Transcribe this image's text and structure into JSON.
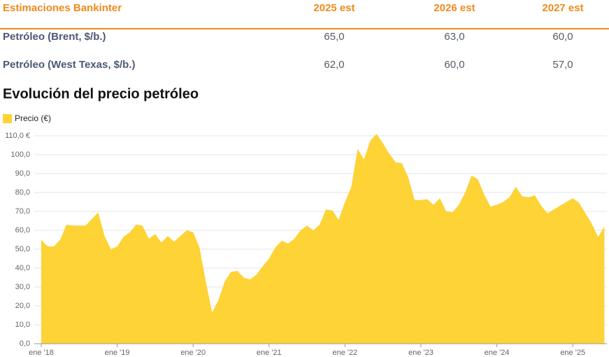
{
  "table": {
    "header": [
      "Estimaciones Bankinter",
      "2025 est",
      "2026 est",
      "2027 est"
    ],
    "rows": [
      [
        "Petróleo (Brent, $/b.)",
        "65,0",
        "63,0",
        "60,0"
      ],
      [
        "Petróleo (West Texas, $/b.)",
        "62,0",
        "60,0",
        "57,0"
      ]
    ]
  },
  "chart_data": {
    "type": "area",
    "title": "Evolución del precio petróleo",
    "categories": [
      "ene '18",
      null,
      null,
      null,
      null,
      null,
      null,
      null,
      null,
      null,
      null,
      null,
      "ene '19",
      null,
      null,
      null,
      null,
      null,
      null,
      null,
      null,
      null,
      null,
      null,
      "ene '20",
      null,
      null,
      null,
      null,
      null,
      null,
      null,
      null,
      null,
      null,
      null,
      "ene '21",
      null,
      null,
      null,
      null,
      null,
      null,
      null,
      null,
      null,
      null,
      null,
      "ene '22",
      null,
      null,
      null,
      null,
      null,
      null,
      null,
      null,
      null,
      null,
      null,
      "ene '23",
      null,
      null,
      null,
      null,
      null,
      null,
      null,
      null,
      null,
      null,
      null,
      "ene '24",
      null,
      null,
      null,
      null,
      null,
      null,
      null,
      null,
      null,
      null,
      null,
      "ene '25",
      null,
      null,
      null,
      null,
      null
    ],
    "series": [
      {
        "name": "Precio (€)",
        "color": "#fdd335",
        "values": [
          55,
          51.5,
          51.5,
          55,
          63,
          62.5,
          62.5,
          62.5,
          66,
          69.5,
          57,
          50,
          51.5,
          56.5,
          59,
          63,
          62.5,
          55.5,
          58,
          53.5,
          57,
          54,
          57,
          60,
          59,
          51,
          33,
          16.5,
          23,
          33,
          38,
          38.5,
          35,
          34,
          36.5,
          41,
          45,
          51,
          54.5,
          53,
          55.5,
          60,
          62.5,
          60,
          63,
          71,
          70.5,
          65.5,
          75,
          83,
          103,
          97.5,
          107.5,
          111,
          106,
          100.5,
          96,
          95.5,
          88,
          76,
          76,
          76.5,
          73.5,
          77,
          70,
          69.5,
          73.5,
          80,
          89,
          87,
          79,
          72.5,
          73.5,
          75,
          77.5,
          83,
          78,
          77.5,
          78.5,
          73,
          69,
          71,
          73,
          75,
          77,
          74.5,
          69,
          63.5,
          56.5,
          62
        ]
      }
    ],
    "ylim": [
      0,
      110
    ],
    "yticks": [
      {
        "value": 0,
        "label": "0,0"
      },
      {
        "value": 10,
        "label": "10,0"
      },
      {
        "value": 20,
        "label": "20,0"
      },
      {
        "value": 30,
        "label": "30,0"
      },
      {
        "value": 40,
        "label": "40,0"
      },
      {
        "value": 50,
        "label": "50,0"
      },
      {
        "value": 60,
        "label": "60,0"
      },
      {
        "value": 70,
        "label": "70,0"
      },
      {
        "value": 80,
        "label": "80,0"
      },
      {
        "value": 90,
        "label": "90,0"
      },
      {
        "value": 100,
        "label": "100,0"
      },
      {
        "value": 110,
        "label": "110,0 €"
      }
    ],
    "grid": true
  }
}
